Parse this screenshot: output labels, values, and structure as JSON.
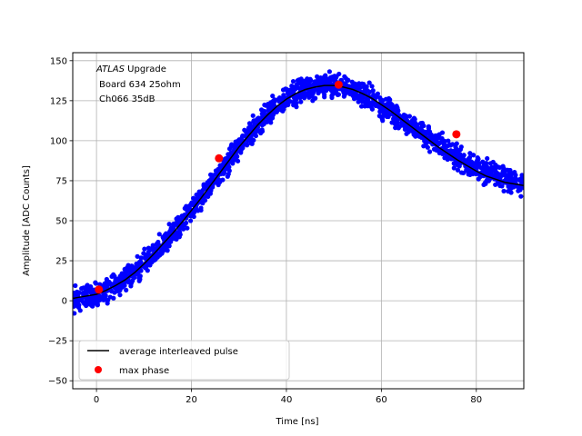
{
  "chart_data": {
    "type": "scatter",
    "xlabel": "Time [ns]",
    "ylabel": "Amplitude [ADC Counts]",
    "xlim": [
      -5,
      90
    ],
    "ylim": [
      -55,
      155
    ],
    "xticks": [
      0,
      20,
      40,
      60,
      80
    ],
    "yticks": [
      -50,
      -25,
      0,
      25,
      50,
      75,
      100,
      125,
      150
    ],
    "grid": true,
    "legend_position": "lower-left",
    "annotation": {
      "line1_italic": "ATLAS",
      "line1_rest": " Upgrade",
      "line2": "Board 634 25ohm",
      "line3": "Ch066 35dB"
    },
    "series": [
      {
        "name": "",
        "kind": "scatter",
        "color": "#0000ff",
        "x": [
          -4,
          -2,
          0,
          2,
          4,
          6,
          8,
          10,
          12,
          14,
          16,
          18,
          20,
          22,
          24,
          26,
          28,
          30,
          32,
          34,
          36,
          38,
          40,
          42,
          44,
          46,
          48,
          50,
          52,
          54,
          56,
          58,
          60,
          62,
          64,
          66,
          68,
          70,
          72,
          74,
          76,
          78,
          80,
          82,
          84,
          86,
          88,
          90
        ],
        "y": [
          2,
          3,
          4,
          7,
          10,
          14,
          18,
          24,
          30,
          36,
          42,
          49,
          57,
          64,
          72,
          80,
          88,
          96,
          103,
          110,
          116,
          121,
          126,
          130,
          132,
          134,
          135,
          135,
          134,
          132,
          129,
          126,
          122,
          118,
          114,
          110,
          106,
          102,
          98,
          94,
          90,
          86,
          83,
          80,
          78,
          76,
          74,
          72
        ]
      },
      {
        "name": "average interleaved pulse",
        "kind": "line",
        "color": "#000000",
        "x": [
          -5,
          -4,
          -2,
          0,
          2,
          4,
          6,
          8,
          10,
          12,
          14,
          16,
          18,
          20,
          22,
          24,
          26,
          28,
          30,
          32,
          34,
          36,
          38,
          40,
          42,
          44,
          46,
          48,
          50,
          52,
          54,
          56,
          58,
          60,
          62,
          64,
          66,
          68,
          70,
          72,
          74,
          76,
          78,
          80,
          82,
          84,
          86,
          88,
          90
        ],
        "y": [
          1.5,
          2,
          3,
          4,
          6.5,
          9.5,
          13,
          17.5,
          23,
          29,
          35.5,
          42,
          49,
          56.5,
          64,
          72,
          80,
          88,
          96,
          103,
          110,
          116,
          121.5,
          126,
          129.5,
          132,
          133.5,
          134.5,
          134.5,
          133.5,
          132,
          129.5,
          126.5,
          122.5,
          118.5,
          114,
          109.5,
          105,
          100.5,
          96,
          92,
          88,
          84.5,
          81,
          78,
          76,
          74,
          73,
          72
        ]
      },
      {
        "name": "max phase",
        "kind": "points",
        "color": "#ff0000",
        "x": [
          0.5,
          25.8,
          51,
          75.8
        ],
        "y": [
          7,
          89,
          135,
          104
        ]
      }
    ]
  }
}
